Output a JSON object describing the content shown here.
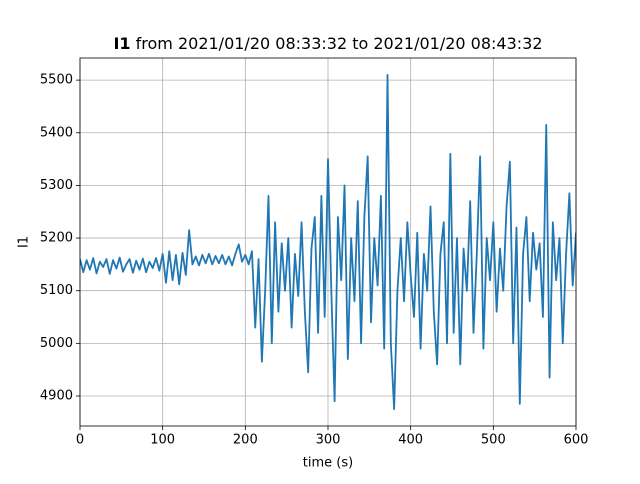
{
  "chart_data": {
    "type": "line",
    "title_signal": "I1",
    "title": "from 2021/01/20 08:33:32 to 2021/01/20 08:43:32",
    "xlabel": "time (s)",
    "ylabel": "I1",
    "color": "#1f77b4",
    "grid": true,
    "xlim": [
      0,
      600
    ],
    "ylim": [
      4843,
      5542
    ],
    "xticks": [
      0,
      100,
      200,
      300,
      400,
      500,
      600
    ],
    "yticks": [
      4900,
      5000,
      5100,
      5200,
      5300,
      5400,
      5500
    ],
    "x": [
      0,
      4,
      8,
      12,
      16,
      20,
      24,
      28,
      32,
      36,
      40,
      44,
      48,
      52,
      56,
      60,
      64,
      68,
      72,
      76,
      80,
      84,
      88,
      92,
      96,
      100,
      104,
      108,
      112,
      116,
      120,
      124,
      128,
      132,
      136,
      140,
      144,
      148,
      152,
      156,
      160,
      164,
      168,
      172,
      176,
      180,
      184,
      188,
      192,
      196,
      200,
      204,
      208,
      212,
      216,
      220,
      224,
      228,
      232,
      236,
      240,
      244,
      248,
      252,
      256,
      260,
      264,
      268,
      272,
      276,
      280,
      284,
      288,
      292,
      296,
      300,
      304,
      308,
      312,
      316,
      320,
      324,
      328,
      332,
      336,
      340,
      344,
      348,
      352,
      356,
      360,
      364,
      368,
      372,
      376,
      380,
      384,
      388,
      392,
      396,
      400,
      404,
      408,
      412,
      416,
      420,
      424,
      428,
      432,
      436,
      440,
      444,
      448,
      452,
      456,
      460,
      464,
      468,
      472,
      476,
      480,
      484,
      488,
      492,
      496,
      500,
      504,
      508,
      512,
      516,
      520,
      524,
      528,
      532,
      536,
      540,
      544,
      548,
      552,
      556,
      560,
      564,
      568,
      572,
      576,
      580,
      584,
      588,
      592,
      596,
      600
    ],
    "values": [
      5160,
      5135,
      5158,
      5140,
      5162,
      5133,
      5155,
      5145,
      5160,
      5132,
      5158,
      5142,
      5163,
      5136,
      5150,
      5160,
      5134,
      5157,
      5140,
      5161,
      5135,
      5155,
      5143,
      5162,
      5138,
      5170,
      5115,
      5175,
      5120,
      5168,
      5112,
      5172,
      5130,
      5215,
      5150,
      5165,
      5148,
      5168,
      5152,
      5170,
      5150,
      5166,
      5152,
      5168,
      5150,
      5165,
      5148,
      5170,
      5188,
      5155,
      5168,
      5150,
      5175,
      5030,
      5160,
      4965,
      5100,
      5280,
      5000,
      5230,
      5060,
      5190,
      5100,
      5200,
      5030,
      5170,
      5090,
      5230,
      5060,
      4945,
      5180,
      5240,
      5020,
      5280,
      5050,
      5350,
      5100,
      4890,
      5240,
      5120,
      5300,
      4970,
      5200,
      5080,
      5270,
      5000,
      5240,
      5355,
      5040,
      5200,
      5110,
      5280,
      4990,
      5510,
      5000,
      4875,
      5100,
      5200,
      5080,
      5230,
      5130,
      5050,
      5210,
      4990,
      5170,
      5100,
      5260,
      5060,
      4960,
      5170,
      5230,
      5000,
      5360,
      5020,
      5200,
      4960,
      5180,
      5100,
      5270,
      5020,
      5170,
      5355,
      4990,
      5200,
      5120,
      5230,
      5060,
      5180,
      5100,
      5260,
      5345,
      5000,
      5220,
      4885,
      5170,
      5240,
      5080,
      5210,
      5140,
      5190,
      5050,
      5415,
      4935,
      5230,
      5120,
      5200,
      5000,
      5170,
      5285,
      5110,
      5210
    ]
  }
}
